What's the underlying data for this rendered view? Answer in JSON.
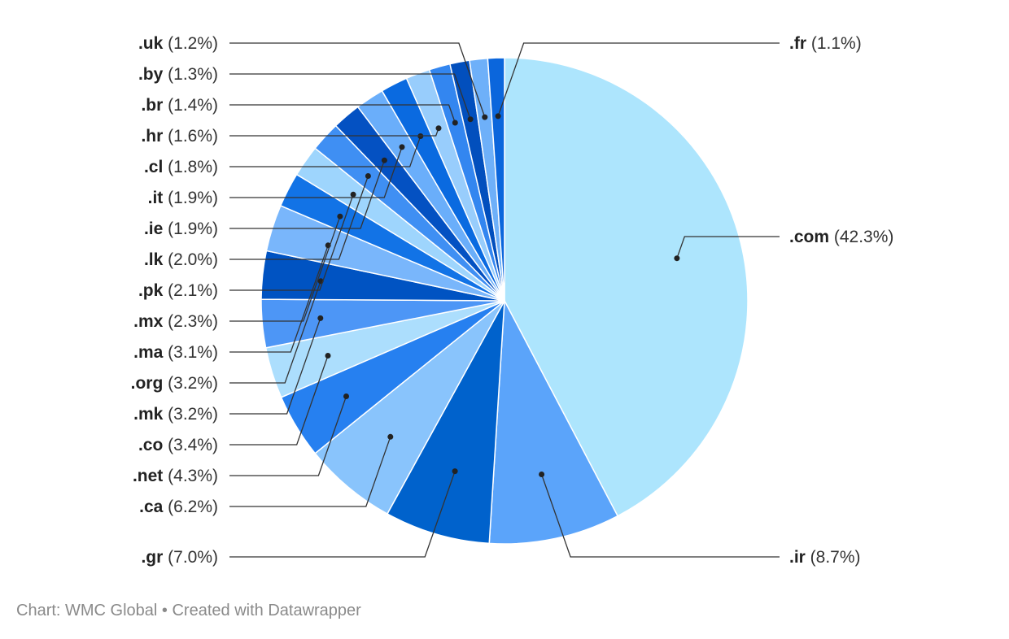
{
  "chart_data": {
    "type": "pie",
    "slices": [
      {
        "label": ".com",
        "value": 42.3,
        "color": "#ade5fd",
        "value_label": "(42.3%)"
      },
      {
        "label": ".ir",
        "value": 8.7,
        "color": "#5ba4fa",
        "value_label": "(8.7%)"
      },
      {
        "label": ".gr",
        "value": 7.0,
        "color": "#0062cc",
        "value_label": "(7.0%)"
      },
      {
        "label": ".ca",
        "value": 6.2,
        "color": "#89c4fc",
        "value_label": "(6.2%)"
      },
      {
        "label": ".net",
        "value": 4.3,
        "color": "#2680f0",
        "value_label": "(4.3%)"
      },
      {
        "label": ".co",
        "value": 3.4,
        "color": "#acdefd",
        "value_label": "(3.4%)"
      },
      {
        "label": ".mk",
        "value": 3.2,
        "color": "#4d96f6",
        "value_label": "(3.2%)"
      },
      {
        "label": ".org",
        "value": 3.2,
        "color": "#0053c2",
        "value_label": "(3.2%)"
      },
      {
        "label": ".ma",
        "value": 3.1,
        "color": "#79b6fb",
        "value_label": "(3.1%)"
      },
      {
        "label": ".mx",
        "value": 2.3,
        "color": "#1273e6",
        "value_label": "(2.3%)"
      },
      {
        "label": ".pk",
        "value": 2.1,
        "color": "#9ed5fd",
        "value_label": "(2.1%)"
      },
      {
        "label": ".lk",
        "value": 2.0,
        "color": "#3f8ff3",
        "value_label": "(2.0%)"
      },
      {
        "label": ".ie",
        "value": 1.9,
        "color": "#0451c2",
        "value_label": "(1.9%)"
      },
      {
        "label": ".it",
        "value": 1.9,
        "color": "#6aaefa",
        "value_label": "(1.9%)"
      },
      {
        "label": ".cl",
        "value": 1.8,
        "color": "#0a6ae0",
        "value_label": "(1.8%)"
      },
      {
        "label": ".hr",
        "value": 1.6,
        "color": "#98cdfc",
        "value_label": "(1.6%)"
      },
      {
        "label": ".br",
        "value": 1.4,
        "color": "#3386f0",
        "value_label": "(1.4%)"
      },
      {
        "label": ".by",
        "value": 1.3,
        "color": "#024fbd",
        "value_label": "(1.3%)"
      },
      {
        "label": ".uk",
        "value": 1.2,
        "color": "#6eb0f9",
        "value_label": "(1.2%)"
      },
      {
        "label": ".fr",
        "value": 1.1,
        "color": "#0b66dc",
        "value_label": "(1.1%)"
      }
    ],
    "start_angle": "12 o'clock",
    "direction": "clockwise",
    "label_placement": "outside with leader lines"
  },
  "footer": "Chart: WMC Global • Created with Datawrapper"
}
